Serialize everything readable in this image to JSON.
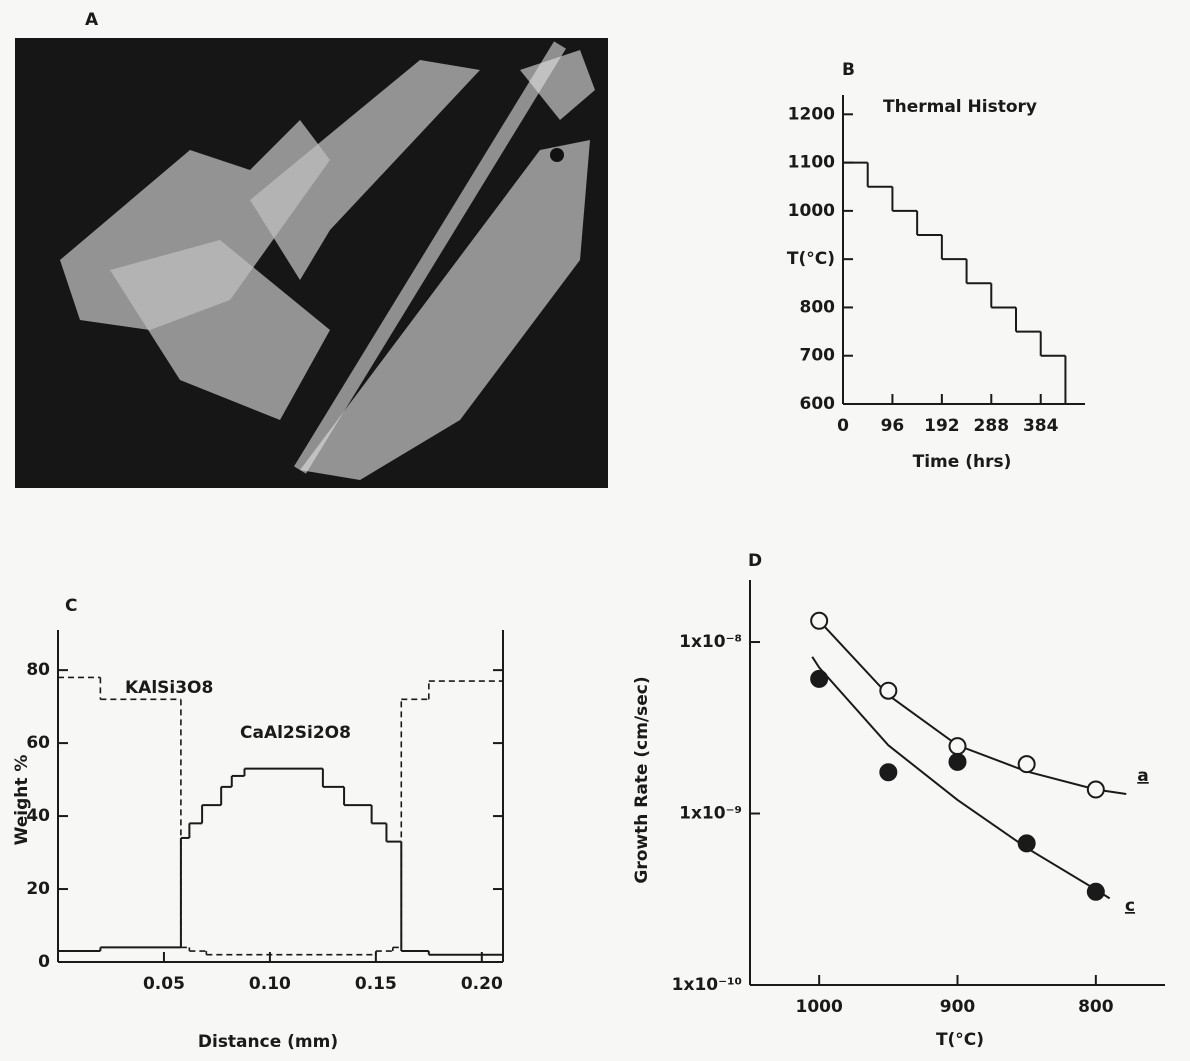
{
  "chart_data": [
    {
      "type": "image",
      "label": "A"
    },
    {
      "type": "step",
      "label": "B",
      "title": "Thermal History",
      "x_label": "Time (hrs)",
      "x": [
        0,
        48,
        96,
        144,
        192,
        240,
        288,
        336,
        384,
        432
      ],
      "values": [
        1100,
        1050,
        1000,
        950,
        900,
        850,
        800,
        750,
        700,
        600
      ],
      "color": "#1a1a1a",
      "xlim": [
        0,
        470
      ],
      "ylim": [
        600,
        1240
      ],
      "xticks": [
        0,
        96,
        192,
        288,
        384
      ],
      "yticks": [
        600,
        700,
        800,
        {
          "value": 900,
          "label": "T(°C)"
        },
        1000,
        1100,
        1200
      ]
    },
    {
      "type": "step",
      "label": "C",
      "x_label": "Distance (mm)",
      "y_label": "Weight %",
      "series": [
        {
          "name": "KAlSi3O8",
          "color": "#1a1a1a",
          "dash": true,
          "x": [
            0,
            0.02,
            0.058,
            0.062,
            0.07,
            0.15,
            0.158,
            0.162,
            0.175
          ],
          "values": [
            78,
            72,
            4,
            3,
            2,
            3,
            4,
            72,
            77
          ]
        },
        {
          "name": "CaAl2Si2O8",
          "color": "#1a1a1a",
          "dash": false,
          "x": [
            0,
            0.02,
            0.058,
            0.062,
            0.068,
            0.077,
            0.082,
            0.088,
            0.125,
            0.135,
            0.148,
            0.155,
            0.162,
            0.175
          ],
          "values": [
            3,
            4,
            34,
            38,
            43,
            48,
            51,
            53,
            48,
            43,
            38,
            33,
            3,
            2
          ]
        }
      ],
      "xlim": [
        0,
        0.21
      ],
      "ylim": [
        0,
        91
      ],
      "xticks": [
        0.05,
        {
          "value": 0.1,
          "label": "0.10"
        },
        0.15,
        {
          "value": 0.2,
          "label": "0.20"
        }
      ],
      "yticks": [
        0,
        20,
        40,
        60,
        80
      ]
    },
    {
      "type": "scatter",
      "label": "D",
      "x_label": "T(°C)",
      "y_label": "Growth Rate (cm/sec)",
      "log_y": true,
      "x": [
        1000,
        950,
        900,
        850,
        800
      ],
      "series": [
        {
          "name": "a",
          "color": "#1a1a1a",
          "marker": "open",
          "values": [
            1.33e-08,
            5.2e-09,
            2.47e-09,
            1.94e-09,
            1.38e-09
          ],
          "fit": {
            "x": [
              1000,
              950,
              900,
              850,
              800,
              778
            ],
            "values": [
              1.33e-08,
              4.9e-09,
              2.5e-09,
              1.76e-09,
              1.38e-09,
              1.3e-09
            ]
          }
        },
        {
          "name": "c",
          "color": "#1a1a1a",
          "marker": "filled",
          "values": [
            6.1e-09,
            1.74e-09,
            2e-09,
            6.7e-10,
            3.5e-10
          ],
          "fit": {
            "x": [
              1005,
              1000,
              950,
              900,
              850,
              800,
              790
            ],
            "values": [
              8.2e-09,
              7.1e-09,
              2.5e-09,
              1.2e-09,
              6.3e-10,
              3.6e-10,
              3.2e-10
            ]
          }
        }
      ],
      "xlim": [
        1050,
        750
      ],
      "ylim": [
        1e-10,
        2.3e-08
      ],
      "xticks": [
        1000,
        900,
        800
      ],
      "yticks": [
        {
          "value": 1e-08,
          "label": "1x10⁻⁸"
        },
        {
          "value": 1e-09,
          "label": "1x10⁻⁹"
        },
        {
          "value": 1e-10,
          "label": "1x10⁻¹⁰"
        }
      ]
    }
  ]
}
